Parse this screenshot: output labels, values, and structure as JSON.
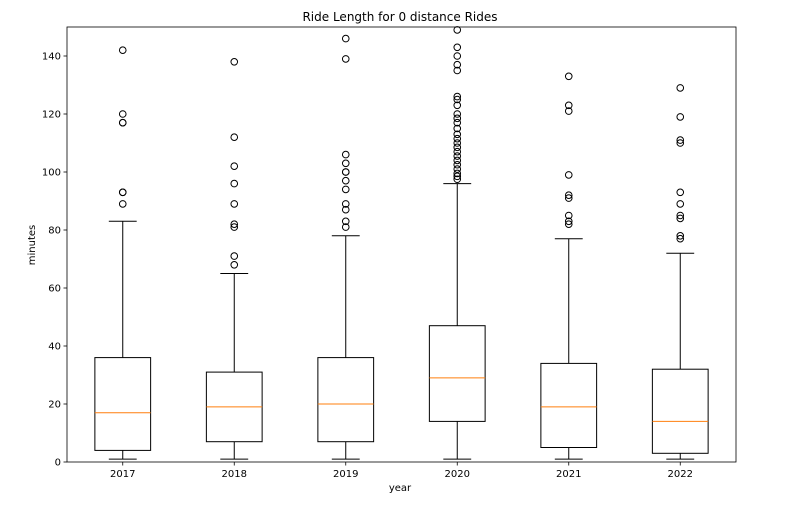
{
  "chart_data": {
    "type": "box",
    "title": "Ride Length for 0 distance Rides",
    "xlabel": "year",
    "ylabel": "minutes",
    "ylim": [
      0,
      150
    ],
    "yticks": [
      0,
      20,
      40,
      60,
      80,
      100,
      120,
      140
    ],
    "categories": [
      "2017",
      "2018",
      "2019",
      "2020",
      "2021",
      "2022"
    ],
    "boxes": [
      {
        "category": "2017",
        "whisker_low": 1,
        "q1": 4,
        "median": 17,
        "q3": 36,
        "whisker_high": 83,
        "outliers": [
          89,
          93,
          93,
          117,
          117,
          120,
          142
        ]
      },
      {
        "category": "2018",
        "whisker_low": 1,
        "q1": 7,
        "median": 19,
        "q3": 31,
        "whisker_high": 65,
        "outliers": [
          68,
          71,
          81,
          82,
          89,
          96,
          102,
          112,
          138
        ]
      },
      {
        "category": "2019",
        "whisker_low": 1,
        "q1": 7,
        "median": 20,
        "q3": 36,
        "whisker_high": 78,
        "outliers": [
          81,
          83,
          87,
          89,
          94,
          97,
          100,
          100,
          103,
          106,
          139,
          146
        ]
      },
      {
        "category": "2020",
        "whisker_low": 1,
        "q1": 14,
        "median": 29,
        "q3": 47,
        "whisker_high": 96,
        "outliers": [
          97.5,
          98.5,
          99.5,
          101,
          102.5,
          104,
          105.5,
          107,
          108.5,
          110,
          111.5,
          113,
          115,
          117,
          118.5,
          120,
          123,
          125,
          126,
          135,
          137,
          140,
          143,
          149
        ]
      },
      {
        "category": "2021",
        "whisker_low": 1,
        "q1": 5,
        "median": 19,
        "q3": 34,
        "whisker_high": 77,
        "outliers": [
          82,
          83,
          85,
          91,
          92,
          99,
          121,
          123,
          133
        ]
      },
      {
        "category": "2022",
        "whisker_low": 1,
        "q1": 3,
        "median": 14,
        "q3": 32,
        "whisker_high": 72,
        "outliers": [
          77,
          78,
          84,
          85,
          89,
          93,
          110,
          111,
          119,
          129
        ]
      }
    ],
    "colors": {
      "box": "#000000",
      "median": "#ff7f0e",
      "outlier": "#000000"
    },
    "grid": false
  }
}
